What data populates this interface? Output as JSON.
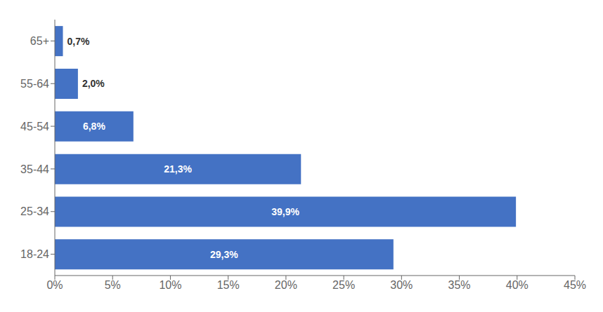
{
  "chart_data": {
    "type": "bar",
    "orientation": "horizontal",
    "categories": [
      "65+",
      "55-64",
      "45-54",
      "35-44",
      "25-34",
      "18-24"
    ],
    "values": [
      0.7,
      2.0,
      6.8,
      21.3,
      39.9,
      29.3
    ],
    "value_labels": [
      "0,7%",
      "2,0%",
      "6,8%",
      "21,3%",
      "39,9%",
      "29,3%"
    ],
    "color": "#4472C4",
    "xlim": [
      0,
      45
    ],
    "xticks": [
      {
        "value": 0,
        "label": "0%"
      },
      {
        "value": 5,
        "label": "5%"
      },
      {
        "value": 10,
        "label": "10%"
      },
      {
        "value": 15,
        "label": "15%"
      },
      {
        "value": 20,
        "label": "20%"
      },
      {
        "value": 25,
        "label": "25%"
      },
      {
        "value": 30,
        "label": "30%"
      },
      {
        "value": 35,
        "label": "35%"
      },
      {
        "value": 40,
        "label": "40%"
      },
      {
        "value": 45,
        "label": "45%"
      }
    ],
    "grid": false,
    "data_labels": true
  }
}
